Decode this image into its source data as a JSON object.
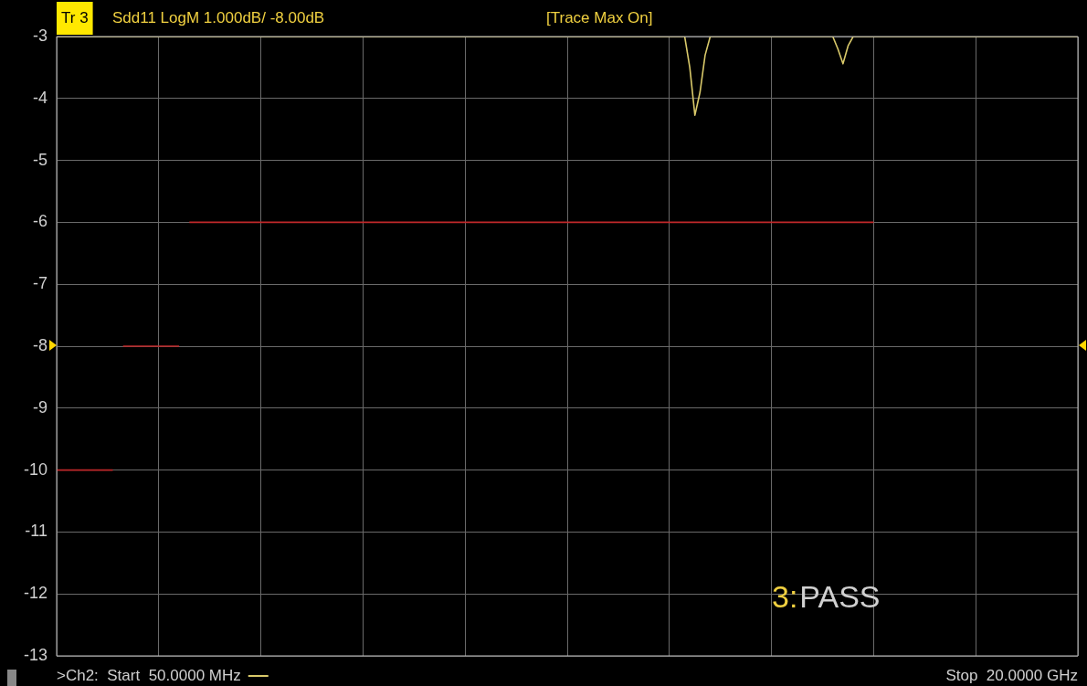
{
  "chart_data": {
    "type": "line",
    "title": "Sdd11 LogM 1.000dB/ -8.00dB",
    "categories": [
      null,
      null,
      null,
      null,
      null,
      null,
      null,
      null,
      null,
      null,
      null,
      null,
      null,
      null,
      null,
      null,
      null,
      null,
      null,
      null,
      null,
      null,
      null,
      null,
      null,
      null,
      null,
      null,
      null,
      null,
      null,
      null,
      null,
      null,
      null,
      null,
      null,
      null,
      null,
      null,
      null,
      null,
      null,
      null,
      null,
      null,
      null,
      null,
      null,
      null,
      null,
      null,
      null,
      null,
      null,
      null,
      null,
      null,
      null,
      null,
      null,
      null,
      null,
      null,
      null,
      null,
      null,
      null,
      null,
      null,
      null,
      null,
      null,
      null,
      null,
      null,
      null,
      null,
      null,
      null,
      null,
      null,
      null,
      null,
      null,
      null,
      null,
      null,
      null,
      null,
      null,
      null,
      null,
      null,
      null,
      null,
      null,
      null,
      null,
      null,
      null,
      null,
      null,
      null,
      null,
      null,
      null,
      null,
      null,
      null,
      null,
      null,
      null,
      null,
      null,
      null,
      null,
      null,
      null,
      null,
      null,
      null,
      null,
      null,
      null,
      null,
      null,
      null,
      null,
      null,
      null,
      null,
      null,
      null,
      null,
      null,
      null,
      null,
      null,
      null,
      null,
      null,
      null,
      null,
      null,
      null,
      null,
      null,
      null,
      null,
      null,
      null,
      null,
      null,
      null,
      null,
      null,
      null,
      null,
      null,
      null,
      null,
      null,
      null,
      null,
      null,
      null,
      null,
      null,
      null,
      null,
      null,
      null,
      null,
      null,
      null,
      null,
      null,
      null,
      null,
      null,
      null,
      null,
      null,
      null,
      null,
      null,
      null,
      null,
      null,
      null,
      null,
      null,
      null,
      null,
      null,
      null,
      null,
      null,
      null,
      null
    ],
    "ylim": [
      -13,
      -3
    ],
    "yticks": [
      -3,
      -4,
      -5,
      -6,
      -7,
      -8,
      -9,
      -10,
      -11,
      -12,
      -13
    ],
    "tick_labels": "y",
    "grid": true,
    "marker": "none",
    "series": [
      {
        "color": "#d9c96a",
        "values": [
          -3,
          -3,
          -3,
          -3,
          -3,
          -3,
          -3,
          -3,
          -3,
          -3,
          -3,
          -3,
          -3,
          -3,
          -3,
          -3,
          -3,
          -3,
          -3,
          -3,
          -3,
          -3,
          -3,
          -3,
          -3,
          -3,
          -3,
          -3,
          -3,
          -3,
          -3,
          -3,
          -3,
          -3,
          -3,
          -3,
          -3,
          -3,
          -3,
          -3,
          -3,
          -3,
          -3,
          -3,
          -3,
          -3,
          -3,
          -3,
          -3,
          -3,
          -3,
          -3,
          -3,
          -3,
          -3,
          -3,
          -3,
          -3,
          -3,
          -3,
          -3,
          -3,
          -3,
          -3,
          -3,
          -3,
          -3,
          -3,
          -3,
          -3,
          -3,
          -3,
          -3,
          -3,
          -3,
          -3,
          -3,
          -3,
          -3,
          -3,
          -3,
          -3,
          -3,
          -3,
          -3,
          -3,
          -3,
          -3,
          -3,
          -3,
          -3,
          -3,
          -3,
          -3,
          -3,
          -3,
          -3,
          -3,
          -3,
          -3,
          -3,
          -3,
          -3,
          -3,
          -3,
          -3,
          -3,
          -3,
          -3,
          -3,
          -3,
          -3,
          -3,
          -3,
          -3,
          -3,
          -3,
          -3,
          -3,
          -3,
          -3,
          -3,
          -3,
          -3,
          -3.5,
          -4.27,
          -3.9,
          -3.3,
          -3,
          -3,
          -3,
          -3,
          -3,
          -3,
          -3,
          -3,
          -3,
          -3,
          -3,
          -3,
          -3,
          -3,
          -3,
          -3,
          -3,
          -3,
          -3,
          -3,
          -3,
          -3,
          -3,
          -3,
          -3,
          -3.2,
          -3.44,
          -3.15,
          -3,
          -3,
          -3,
          -3,
          -3,
          -3,
          -3,
          -3,
          -3,
          -3,
          -3,
          -3,
          -3,
          -3,
          -3,
          -3,
          -3,
          -3,
          -3,
          -3,
          -3,
          -3,
          -3,
          -3,
          -3,
          -3,
          -3,
          -3,
          -3,
          -3,
          -3,
          -3,
          -3,
          -3,
          -3,
          -3,
          -3,
          -3,
          -3,
          -3,
          -3,
          -3,
          -3,
          -3,
          -3
        ]
      },
      {
        "color": "#c0282a",
        "values": [
          -10,
          -10,
          -10,
          -10,
          -10,
          -10,
          -10,
          -10,
          -10,
          -10,
          -10,
          -10,
          null,
          -8,
          -8,
          -8,
          -8,
          -8,
          -8,
          -8,
          -8,
          -8,
          -8,
          -8,
          -8,
          null,
          -6,
          -6,
          -6,
          -6,
          -6,
          -6,
          -6,
          -6,
          -6,
          -6,
          -6,
          -6,
          -6,
          -6,
          -6,
          -6,
          -6,
          -6,
          -6,
          -6,
          -6,
          -6,
          -6,
          -6,
          -6,
          -6,
          -6,
          -6,
          -6,
          -6,
          -6,
          -6,
          -6,
          -6,
          -6,
          -6,
          -6,
          -6,
          -6,
          -6,
          -6,
          -6,
          -6,
          -6,
          -6,
          -6,
          -6,
          -6,
          -6,
          -6,
          -6,
          -6,
          -6,
          -6,
          -6,
          -6,
          -6,
          -6,
          -6,
          -6,
          -6,
          -6,
          -6,
          -6,
          -6,
          -6,
          -6,
          -6,
          -6,
          -6,
          -6,
          -6,
          -6,
          -6,
          -6,
          -6,
          -6,
          -6,
          -6,
          -6,
          -6,
          -6,
          -6,
          -6,
          -6,
          -6,
          -6,
          -6,
          -6,
          -6,
          -6,
          -6,
          -6,
          -6,
          -6,
          -6,
          -6,
          -6,
          -6,
          -6,
          -6,
          -6,
          -6,
          -6,
          -6,
          -6,
          -6,
          -6,
          -6,
          -6,
          -6,
          -6,
          -6,
          -6,
          -6,
          -6,
          -6,
          -6,
          -6,
          -6,
          -6,
          -6,
          -6,
          -6,
          -6,
          -6,
          -6,
          -6,
          -6,
          -6,
          -6,
          -6,
          -6,
          -6,
          -6,
          null,
          null,
          null,
          null,
          null,
          null,
          null,
          null,
          null,
          null,
          null,
          null,
          null,
          null,
          null,
          null,
          null,
          null,
          null,
          null,
          null,
          null,
          null,
          null,
          null,
          null,
          null,
          null,
          null,
          null,
          null,
          null,
          null,
          null,
          null,
          null,
          null,
          null,
          null,
          null
        ]
      }
    ],
    "annotations": [
      "Tr 3",
      "[Trace Max On]",
      "3:PASS",
      ">Ch2:  Start  50.0000 MHz",
      "Stop  20.0000 GHz"
    ]
  }
}
